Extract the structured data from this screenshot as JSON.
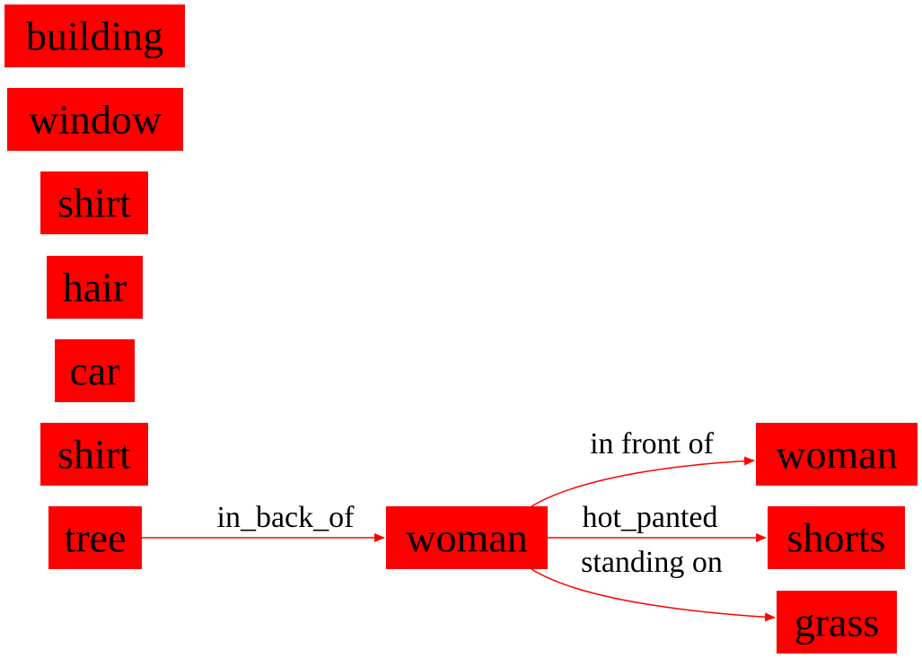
{
  "colors": {
    "node_fill": "#ff0000",
    "edge": "#ff0000",
    "text": "#000000",
    "background": "#ffffff"
  },
  "nodes": [
    {
      "id": "building",
      "label": "building"
    },
    {
      "id": "window",
      "label": "window"
    },
    {
      "id": "shirt1",
      "label": "shirt"
    },
    {
      "id": "hair",
      "label": "hair"
    },
    {
      "id": "car",
      "label": "car"
    },
    {
      "id": "shirt2",
      "label": "shirt"
    },
    {
      "id": "tree",
      "label": "tree"
    },
    {
      "id": "woman1",
      "label": "woman"
    },
    {
      "id": "woman2",
      "label": "woman"
    },
    {
      "id": "shorts",
      "label": "shorts"
    },
    {
      "id": "grass",
      "label": "grass"
    }
  ],
  "edges": [
    {
      "id": "e1",
      "from": "tree",
      "to": "woman1",
      "label": "in_back_of"
    },
    {
      "id": "e2",
      "from": "woman1",
      "to": "woman2",
      "label": "in front of"
    },
    {
      "id": "e3",
      "from": "woman1",
      "to": "shorts",
      "label": "hot_panted"
    },
    {
      "id": "e4",
      "from": "woman1",
      "to": "grass",
      "label": "standing on"
    }
  ]
}
